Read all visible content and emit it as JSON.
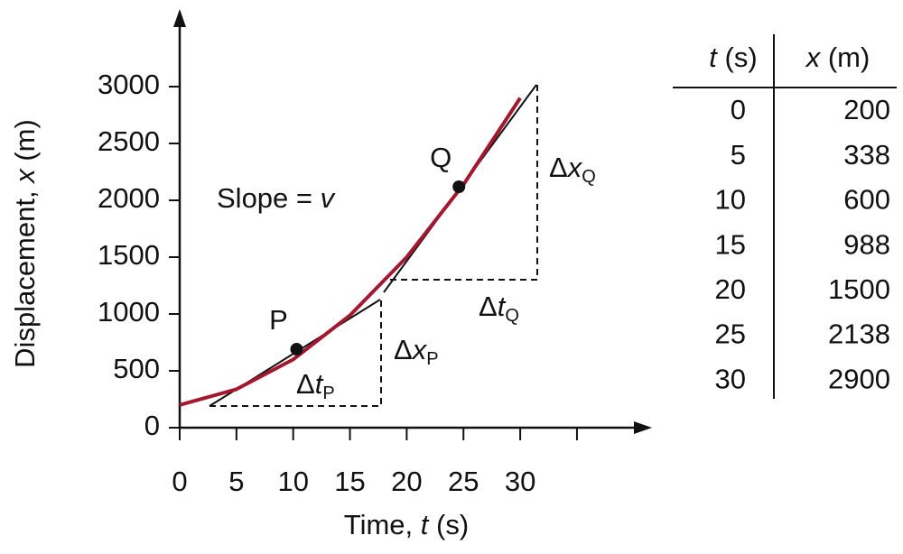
{
  "chart_data": {
    "type": "line",
    "x_label": {
      "text": "Time,",
      "symbol": "t",
      "unit": "(s)"
    },
    "y_label": {
      "text": "Displacement,",
      "symbol": "x",
      "unit": "(m)"
    },
    "x": [
      0,
      5,
      10,
      15,
      20,
      25,
      30
    ],
    "series": [
      {
        "color": "#a3182f",
        "values": [
          200,
          338,
          600,
          988,
          1500,
          2138,
          2900
        ]
      }
    ],
    "xlim": [
      0,
      40
    ],
    "ylim": [
      0,
      3500
    ],
    "xticks": [
      0,
      5,
      10,
      15,
      20,
      25,
      30,
      {
        "value": 35,
        "label": null
      }
    ],
    "yticks": [
      0,
      500,
      1000,
      1500,
      2000,
      2500,
      3000
    ],
    "points": [
      {
        "label": "P",
        "x": 10.3,
        "y": 690
      },
      {
        "label": "Q",
        "x": 24.6,
        "y": 2119
      }
    ],
    "annotations": {
      "slope": {
        "text": "Slope  =",
        "symbol": "v"
      },
      "dt_p": {
        "delta": "Δ",
        "symbol": "t",
        "sub": "P"
      },
      "dx_p": {
        "delta": "Δ",
        "symbol": "x",
        "sub": "P"
      },
      "dt_q": {
        "delta": "Δ",
        "symbol": "t",
        "sub": "Q"
      },
      "dx_q": {
        "delta": "Δ",
        "symbol": "x",
        "sub": "Q"
      }
    },
    "table_header": [
      {
        "symbol": "t",
        "unit": "(s)"
      },
      {
        "symbol": "x",
        "unit": "(m)"
      }
    ]
  }
}
